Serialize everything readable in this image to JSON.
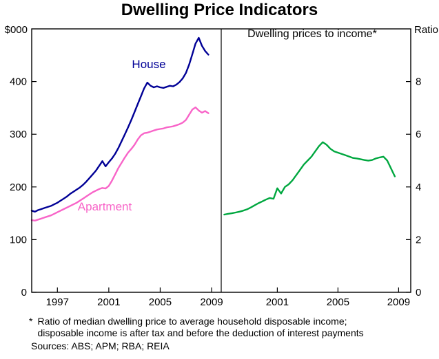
{
  "title": "Dwelling Price Indicators",
  "footnote": {
    "marker": "*",
    "lines": [
      "Ratio of median dwelling price to average household disposable income;",
      "disposable income is after tax and before the deduction of interest payments"
    ]
  },
  "sources": "Sources: ABS; APM; RBA; REIA",
  "chart_data": [
    {
      "type": "line",
      "panel": "left",
      "title": "",
      "ylabel": "$000",
      "ylim": [
        0,
        500
      ],
      "yticks": [
        0,
        100,
        200,
        300,
        400
      ],
      "xlim": [
        1995,
        2009.75
      ],
      "xticks": [
        1997,
        2001,
        2005,
        2009
      ],
      "grid": false,
      "series": [
        {
          "name": "House",
          "color": "#000096",
          "x_start": 1995,
          "x_step": 0.25,
          "values": [
            155,
            153,
            156,
            158,
            160,
            162,
            164,
            167,
            170,
            174,
            178,
            182,
            187,
            191,
            195,
            199,
            204,
            210,
            217,
            224,
            231,
            240,
            249,
            239,
            247,
            254,
            263,
            274,
            287,
            300,
            313,
            327,
            342,
            357,
            372,
            387,
            398,
            392,
            389,
            391,
            389,
            388,
            390,
            392,
            391,
            394,
            399,
            406,
            416,
            432,
            452,
            472,
            483,
            468,
            458,
            451
          ]
        },
        {
          "name": "Apartment",
          "color": "#f864c8",
          "x_start": 1995,
          "x_step": 0.25,
          "values": [
            137,
            136,
            138,
            140,
            142,
            144,
            146,
            149,
            152,
            155,
            158,
            161,
            164,
            167,
            170,
            174,
            178,
            182,
            186,
            190,
            193,
            196,
            198,
            197,
            202,
            212,
            224,
            236,
            246,
            256,
            265,
            272,
            280,
            290,
            298,
            302,
            303,
            305,
            307,
            309,
            310,
            311,
            313,
            314,
            315,
            317,
            319,
            322,
            327,
            337,
            347,
            351,
            345,
            341,
            344,
            340
          ]
        }
      ]
    },
    {
      "type": "line",
      "panel": "right",
      "title": "Dwelling prices to income*",
      "ylabel": "Ratio",
      "ylim": [
        0,
        10
      ],
      "yticks": [
        0,
        2,
        4,
        6,
        8
      ],
      "xlim": [
        1997.3,
        2009.8
      ],
      "xticks": [
        2001,
        2005,
        2009
      ],
      "grid": false,
      "series": [
        {
          "name": "Dwelling prices to income",
          "color": "#00a73f",
          "x_start": 1997.5,
          "x_step": 0.25,
          "values": [
            2.95,
            2.98,
            3.0,
            3.03,
            3.06,
            3.1,
            3.15,
            3.22,
            3.3,
            3.38,
            3.45,
            3.52,
            3.58,
            3.55,
            3.95,
            3.75,
            4.0,
            4.1,
            4.25,
            4.45,
            4.65,
            4.85,
            5.0,
            5.15,
            5.35,
            5.55,
            5.7,
            5.6,
            5.45,
            5.35,
            5.3,
            5.25,
            5.2,
            5.15,
            5.1,
            5.08,
            5.05,
            5.02,
            5.0,
            5.02,
            5.08,
            5.12,
            5.15,
            5.0,
            4.7,
            4.4
          ]
        }
      ]
    }
  ]
}
